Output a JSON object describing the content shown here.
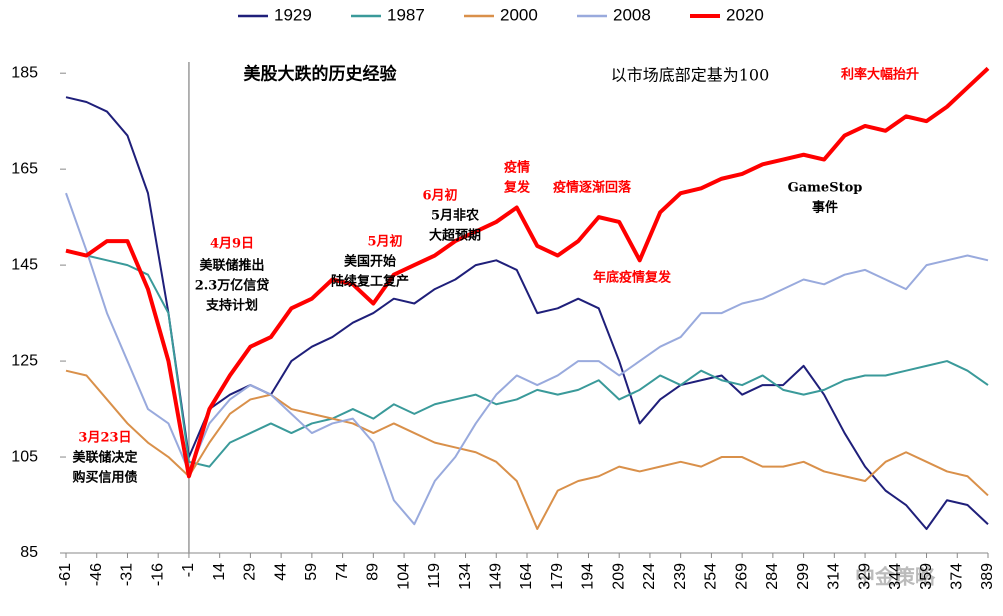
{
  "chart_data": {
    "type": "line",
    "title": "美股大跌的历史经验",
    "subtitle": "以市场底部定基为100",
    "x": [
      -61,
      -51,
      -41,
      -31,
      -21,
      -11,
      -1,
      9,
      19,
      29,
      39,
      49,
      59,
      69,
      79,
      89,
      99,
      109,
      119,
      129,
      139,
      149,
      159,
      169,
      179,
      189,
      199,
      209,
      219,
      229,
      239,
      249,
      259,
      269,
      279,
      289,
      299,
      309,
      319,
      329,
      339,
      349,
      359,
      369,
      379,
      389
    ],
    "series": [
      {
        "name": "1929",
        "color": "#1f1f7a",
        "values": [
          180,
          179,
          177,
          172,
          160,
          135,
          105,
          115,
          118,
          120,
          118,
          125,
          128,
          130,
          133,
          135,
          138,
          137,
          140,
          142,
          145,
          146,
          144,
          135,
          136,
          138,
          136,
          125,
          112,
          117,
          120,
          121,
          122,
          118,
          120,
          120,
          124,
          118,
          110,
          103,
          98,
          95,
          90,
          96,
          95,
          91
        ]
      },
      {
        "name": "1987",
        "color": "#3a9a9a",
        "values": [
          148,
          147,
          146,
          145,
          143,
          135,
          104,
          103,
          108,
          110,
          112,
          110,
          112,
          113,
          115,
          113,
          116,
          114,
          116,
          117,
          118,
          116,
          117,
          119,
          118,
          119,
          121,
          117,
          119,
          122,
          120,
          123,
          121,
          120,
          122,
          119,
          118,
          119,
          121,
          122,
          122,
          123,
          124,
          125,
          123,
          120
        ]
      },
      {
        "name": "2000",
        "color": "#d9904a",
        "values": [
          123,
          122,
          117,
          112,
          108,
          105,
          101,
          108,
          114,
          117,
          118,
          115,
          114,
          113,
          112,
          110,
          112,
          110,
          108,
          107,
          106,
          104,
          100,
          90,
          98,
          100,
          101,
          103,
          102,
          103,
          104,
          103,
          105,
          105,
          103,
          103,
          104,
          102,
          101,
          100,
          104,
          106,
          104,
          102,
          101,
          97
        ]
      },
      {
        "name": "2008",
        "color": "#99aadd",
        "values": [
          160,
          148,
          135,
          125,
          115,
          112,
          102,
          112,
          117,
          120,
          118,
          114,
          110,
          112,
          113,
          108,
          96,
          91,
          100,
          105,
          112,
          118,
          122,
          120,
          122,
          125,
          125,
          122,
          125,
          128,
          130,
          135,
          135,
          137,
          138,
          140,
          142,
          141,
          143,
          144,
          142,
          140,
          145,
          146,
          147,
          146
        ]
      },
      {
        "name": "2020",
        "color": "#ff0000",
        "values": [
          148,
          147,
          150,
          150,
          140,
          125,
          101,
          115,
          122,
          128,
          130,
          136,
          138,
          142,
          141,
          137,
          143,
          145,
          147,
          150,
          152,
          154,
          157,
          149,
          147,
          150,
          155,
          154,
          146,
          156,
          160,
          161,
          163,
          164,
          166,
          167,
          168,
          167,
          172,
          174,
          173,
          176,
          175,
          178,
          182,
          186
        ]
      }
    ],
    "xlim": [
      -61,
      389
    ],
    "xticks": [
      -61,
      -46,
      -31,
      -16,
      -1,
      14,
      29,
      44,
      59,
      74,
      89,
      104,
      119,
      134,
      149,
      164,
      179,
      194,
      209,
      224,
      239,
      254,
      269,
      284,
      299,
      314,
      329,
      344,
      359,
      374,
      389
    ],
    "ylim": [
      85,
      194
    ],
    "yticks": [
      85,
      105,
      125,
      145,
      165,
      185
    ],
    "marker_line_x": -1,
    "annotations": [
      {
        "lines": [
          "利率大幅抬升"
        ],
        "color": "#ff0000"
      },
      {
        "lines": [
          "GameStop",
          "事件"
        ],
        "color": "#000000"
      },
      {
        "lines": [
          "年底疫情复发"
        ],
        "color": "#ff0000"
      },
      {
        "lines": [
          "疫情逐渐回落"
        ],
        "color": "#ff0000"
      },
      {
        "lines": [
          "疫情",
          "复发"
        ],
        "color": "#ff0000"
      },
      {
        "lines": [
          "6月初"
        ],
        "color": "#ff0000"
      },
      {
        "lines": [
          "5月非农",
          "大超预期"
        ],
        "color": "#000000"
      },
      {
        "lines": [
          "5月初"
        ],
        "color": "#ff0000"
      },
      {
        "lines": [
          "美国开始",
          "陆续复工复产"
        ],
        "color": "#000000"
      },
      {
        "lines": [
          "4月9日"
        ],
        "color": "#ff0000"
      },
      {
        "lines": [
          "美联储推出",
          "2.3万亿信贷",
          "支持计划"
        ],
        "color": "#000000"
      },
      {
        "lines": [
          "3月23日"
        ],
        "color": "#ff0000"
      },
      {
        "lines": [
          "美联储决定",
          "购买信用债"
        ],
        "color": "#000000"
      }
    ],
    "watermark": "中金策略"
  }
}
